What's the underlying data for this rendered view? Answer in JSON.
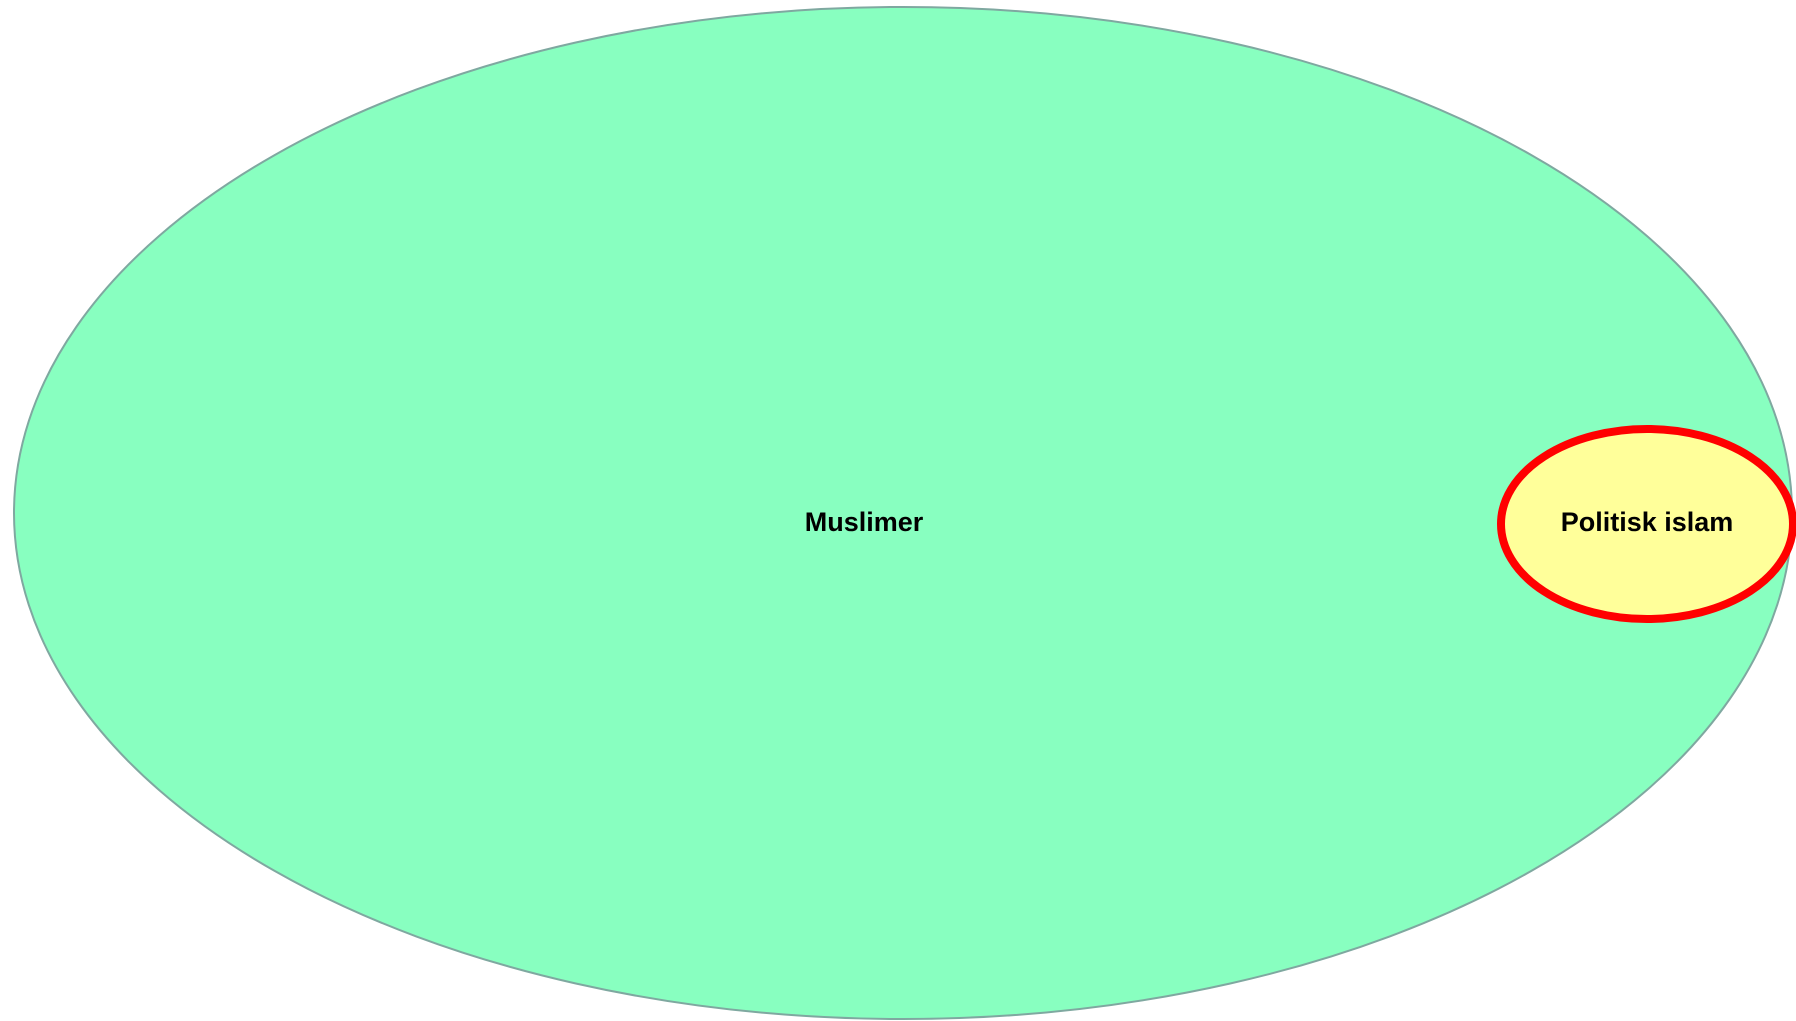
{
  "nodes": [
    {
      "label": "Muslimer"
    },
    {
      "label": "Politisk islam"
    }
  ]
}
